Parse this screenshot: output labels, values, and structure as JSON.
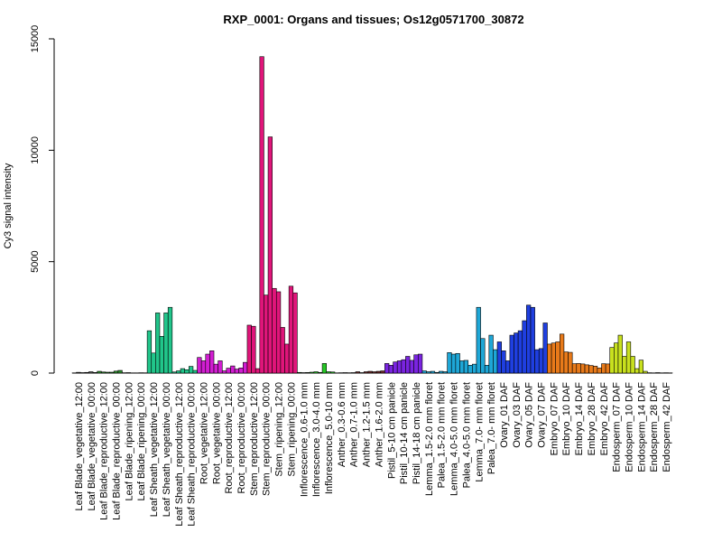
{
  "chart_data": {
    "type": "bar",
    "title": "RXP_0001: Organs and tissues; Os12g0571700_30872",
    "xlabel": "",
    "ylabel": "Cy3 signal intensity",
    "ylim": [
      0,
      15000
    ],
    "yticks": [
      0,
      5000,
      10000,
      15000
    ],
    "grid": false,
    "categories": [
      {
        "label": "Leaf Blade_vegetative_12:00",
        "color": "#5a5a5a",
        "values": [
          10,
          35,
          20
        ]
      },
      {
        "label": "Leaf Blade_vegetative_00:00",
        "color": "#5a5a5a",
        "values": [
          30,
          60,
          25
        ]
      },
      {
        "label": "Leaf Blade_reproductive_12:00",
        "color": "#2e8b2e",
        "values": [
          80,
          50,
          40
        ]
      },
      {
        "label": "Leaf Blade_reproductive_00:00",
        "color": "#2e8b2e",
        "values": [
          40,
          90,
          120
        ]
      },
      {
        "label": "Leaf Blade_ripening_12:00",
        "color": "#2e8b2e",
        "values": [
          15,
          20,
          10
        ]
      },
      {
        "label": "Leaf Blade_ripening_00:00",
        "color": "#2e8b2e",
        "values": [
          10,
          15,
          12
        ]
      },
      {
        "label": "Leaf Sheath_vegetative_12:00",
        "color": "#21c58a",
        "values": [
          1900,
          900,
          2700
        ]
      },
      {
        "label": "Leaf Sheath_vegetative_00:00",
        "color": "#21c58a",
        "values": [
          1650,
          2700,
          2950
        ]
      },
      {
        "label": "Leaf Sheath_reproductive_12:00",
        "color": "#21c58a",
        "values": [
          50,
          100,
          200
        ]
      },
      {
        "label": "Leaf Sheath_reproductive_00:00",
        "color": "#21c58a",
        "values": [
          150,
          300,
          120
        ]
      },
      {
        "label": "Root_vegetative_12:00",
        "color": "#d21ed2",
        "values": [
          700,
          550,
          850
        ]
      },
      {
        "label": "Root_vegetative_00:00",
        "color": "#d21ed2",
        "values": [
          1000,
          400,
          550
        ]
      },
      {
        "label": "Root_reproductive_12:00",
        "color": "#d21ed2",
        "values": [
          100,
          220,
          320
        ]
      },
      {
        "label": "Root_reproductive_00:00",
        "color": "#d21ed2",
        "values": [
          180,
          230,
          480
        ]
      },
      {
        "label": "Stem_reproductive_12:00",
        "color": "#e0157a",
        "values": [
          2150,
          2100,
          200
        ]
      },
      {
        "label": "Stem_reproductive_00:00",
        "color": "#e0157a",
        "values": [
          14200,
          3500,
          10600
        ]
      },
      {
        "label": "Stem_ripening_12:00",
        "color": "#e0157a",
        "values": [
          3800,
          3650,
          2050
        ]
      },
      {
        "label": "Stem_ripening_00:00",
        "color": "#e0157a",
        "values": [
          1300,
          3900,
          3600
        ]
      },
      {
        "label": "Inflorescence_0.6-1.0 mm",
        "color": "#25c825",
        "values": [
          30,
          20,
          25
        ]
      },
      {
        "label": "Inflorescence_3.0-4.0 mm",
        "color": "#25c825",
        "values": [
          40,
          60,
          30
        ]
      },
      {
        "label": "Inflorescence_5.0-10 mm",
        "color": "#25c825",
        "values": [
          430,
          60,
          50
        ]
      },
      {
        "label": "Anther_0.3-0.6 mm",
        "color": "#6b2a2a",
        "values": [
          10,
          15,
          20
        ]
      },
      {
        "label": "Anther_0.7-1.0 mm",
        "color": "#6b2a2a",
        "values": [
          15,
          20,
          60
        ]
      },
      {
        "label": "Anther_1.2-1.5 mm",
        "color": "#6b2a2a",
        "values": [
          20,
          60,
          80
        ]
      },
      {
        "label": "Anther_1.6-2.0 mm",
        "color": "#6b2a2a",
        "values": [
          60,
          80,
          100
        ]
      },
      {
        "label": "Pistil_5-10 cm panicle",
        "color": "#7a24e0",
        "values": [
          430,
          350,
          500
        ]
      },
      {
        "label": "Pistil_10-14 cm panicle",
        "color": "#7a24e0",
        "values": [
          550,
          600,
          750
        ]
      },
      {
        "label": "Pistil_14-18 cm panicle",
        "color": "#7a24e0",
        "values": [
          570,
          820,
          850
        ]
      },
      {
        "label": "Lemma_1.5-2.0 mm floret",
        "color": "#1ea7d7",
        "values": [
          100,
          60,
          80
        ]
      },
      {
        "label": "Palea_1.5-2.0 mm floret",
        "color": "#1ea7d7",
        "values": [
          30,
          80,
          60
        ]
      },
      {
        "label": "Lemma_4.0-5.0 mm floret",
        "color": "#1ea7d7",
        "values": [
          920,
          850,
          880
        ]
      },
      {
        "label": "Palea_4.0-5.0 mm floret",
        "color": "#1ea7d7",
        "values": [
          550,
          570,
          350
        ]
      },
      {
        "label": "Lemma_7.0- mm floret",
        "color": "#1ea7d7",
        "values": [
          400,
          2950,
          1550
        ]
      },
      {
        "label": "Palea_7.0- mm floret",
        "color": "#1ea7d7",
        "values": [
          350,
          1700,
          1050
        ]
      },
      {
        "label": "Ovary_01 DAF",
        "color": "#1f3fe0",
        "values": [
          1400,
          1000,
          550
        ]
      },
      {
        "label": "Ovary_03 DAF",
        "color": "#1f3fe0",
        "values": [
          1700,
          1800,
          1900
        ]
      },
      {
        "label": "Ovary_05 DAF",
        "color": "#1f3fe0",
        "values": [
          2350,
          3050,
          2950
        ]
      },
      {
        "label": "Ovary_07 DAF",
        "color": "#1f3fe0",
        "values": [
          1050,
          1100,
          2250
        ]
      },
      {
        "label": "Embryo_07 DAF",
        "color": "#e87a1a",
        "values": [
          1300,
          1350,
          1400
        ]
      },
      {
        "label": "Embryo_10 DAF",
        "color": "#e87a1a",
        "values": [
          1750,
          950,
          930
        ]
      },
      {
        "label": "Embryo_14 DAF",
        "color": "#e87a1a",
        "values": [
          420,
          430,
          410
        ]
      },
      {
        "label": "Embryo_28 DAF",
        "color": "#e87a1a",
        "values": [
          370,
          340,
          310
        ]
      },
      {
        "label": "Embryo_42 DAF",
        "color": "#e87a1a",
        "values": [
          230,
          420,
          410
        ]
      },
      {
        "label": "Endosperm_07 DAF",
        "color": "#c8e01e",
        "values": [
          1150,
          1350,
          1700
        ]
      },
      {
        "label": "Endosperm_10 DAF",
        "color": "#c8e01e",
        "values": [
          750,
          1400,
          750
        ]
      },
      {
        "label": "Endosperm_14 DAF",
        "color": "#c8e01e",
        "values": [
          200,
          580,
          80
        ]
      },
      {
        "label": "Endosperm_28 DAF",
        "color": "#5a5a5a",
        "values": [
          15,
          10,
          20
        ]
      },
      {
        "label": "Endosperm_42 DAF",
        "color": "#5a5a5a",
        "values": [
          10,
          15,
          10
        ]
      }
    ]
  }
}
